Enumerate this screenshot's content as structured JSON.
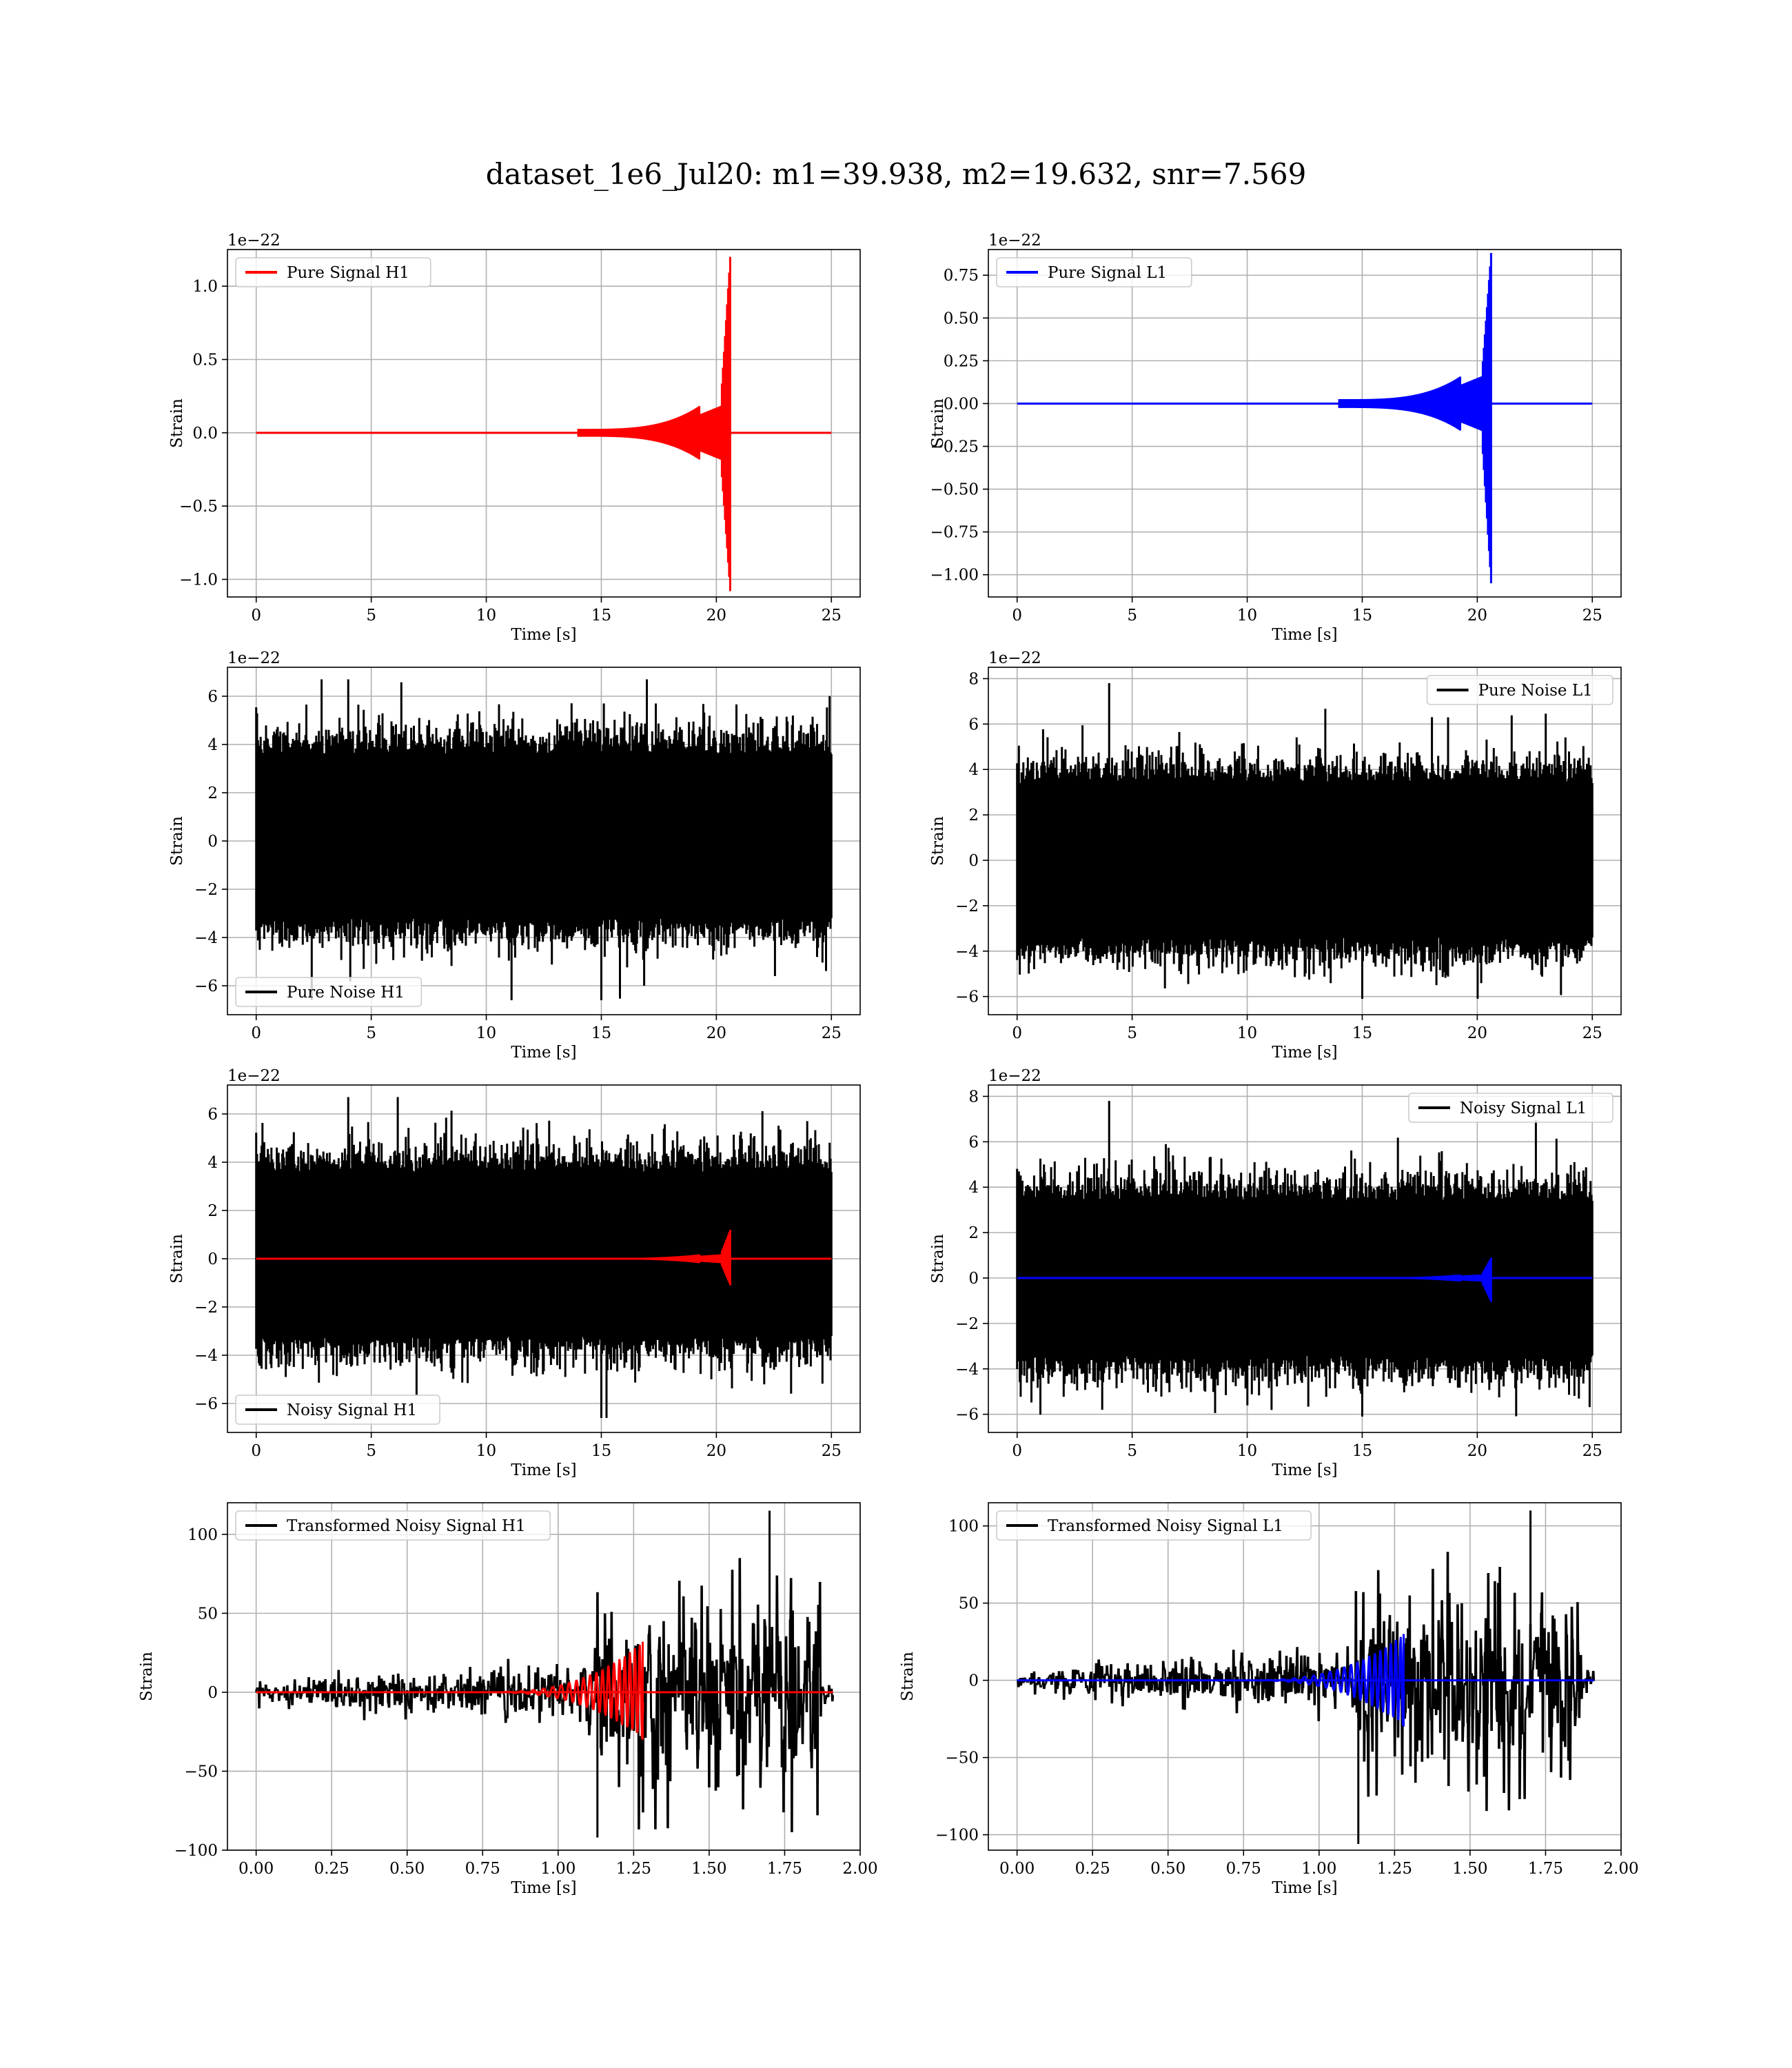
{
  "figure": {
    "title": "dataset_1e6_Jul20: m1=39.938, m2=19.632, snr=7.569"
  },
  "chart_data": [
    {
      "type": "line",
      "panel": "top-left",
      "ylabel": "Strain",
      "xlabel": "Time [s]",
      "offset_label": "1e−22",
      "xlim": [
        -1.25,
        26.25
      ],
      "ylim": [
        -1.12,
        1.25
      ],
      "xticks": [
        0,
        5,
        10,
        15,
        20,
        25
      ],
      "xtick_labels": [
        "0",
        "5",
        "10",
        "15",
        "20",
        "25"
      ],
      "yticks": [
        -1.0,
        -0.5,
        0.0,
        0.5,
        1.0
      ],
      "ytick_labels": [
        "−1.0",
        "−0.5",
        "0.0",
        "0.5",
        "1.0"
      ],
      "grid": true,
      "legend_position": "upper-left",
      "series": [
        {
          "name": "Pure Signal H1",
          "color": "#ff0000",
          "kind": "chirp",
          "t_start": 0,
          "t_end": 25,
          "t_merge": 20.6,
          "peak_pos": 1.2,
          "peak_neg": -1.08,
          "amp": 1.0
        }
      ]
    },
    {
      "type": "line",
      "panel": "top-right",
      "ylabel": "Strain",
      "xlabel": "Time [s]",
      "offset_label": "1e−22",
      "xlim": [
        -1.25,
        26.25
      ],
      "ylim": [
        -1.13,
        0.9
      ],
      "xticks": [
        0,
        5,
        10,
        15,
        20,
        25
      ],
      "xtick_labels": [
        "0",
        "5",
        "10",
        "15",
        "20",
        "25"
      ],
      "yticks": [
        -1.0,
        -0.75,
        -0.5,
        -0.25,
        0.0,
        0.25,
        0.5,
        0.75
      ],
      "ytick_labels": [
        "−1.00",
        "−0.75",
        "−0.50",
        "−0.25",
        "0.00",
        "0.25",
        "0.50",
        "0.75"
      ],
      "grid": true,
      "legend_position": "upper-left",
      "series": [
        {
          "name": "Pure Signal L1",
          "color": "#0000ff",
          "kind": "chirp",
          "t_start": 0,
          "t_end": 25,
          "t_merge": 20.6,
          "peak_pos": 0.88,
          "peak_neg": -1.05,
          "amp": 0.85
        }
      ]
    },
    {
      "type": "line",
      "panel": "middle-left",
      "ylabel": "Strain",
      "xlabel": "Time [s]",
      "offset_label": "1e−22",
      "xlim": [
        -1.25,
        26.25
      ],
      "ylim": [
        -7.2,
        7.2
      ],
      "xticks": [
        0,
        5,
        10,
        15,
        20,
        25
      ],
      "xtick_labels": [
        "0",
        "5",
        "10",
        "15",
        "20",
        "25"
      ],
      "yticks": [
        -6,
        -4,
        -2,
        0,
        2,
        4,
        6
      ],
      "ytick_labels": [
        "−6",
        "−4",
        "−2",
        "0",
        "2",
        "4",
        "6"
      ],
      "grid": true,
      "legend_position": "lower-left",
      "series": [
        {
          "name": "Pure Noise H1",
          "color": "#000000",
          "kind": "noise",
          "t_start": 0,
          "t_end": 25,
          "center": 0.2,
          "band": 3.4,
          "spike_max": 6.7,
          "spike_min": -6.6
        }
      ]
    },
    {
      "type": "line",
      "panel": "middle-right",
      "ylabel": "Strain",
      "xlabel": "Time [s]",
      "offset_label": "1e−22",
      "xlim": [
        -1.25,
        26.25
      ],
      "ylim": [
        -6.8,
        8.5
      ],
      "xticks": [
        0,
        5,
        10,
        15,
        20,
        25
      ],
      "xtick_labels": [
        "0",
        "5",
        "10",
        "15",
        "20",
        "25"
      ],
      "yticks": [
        -6,
        -4,
        -2,
        0,
        2,
        4,
        6,
        8
      ],
      "ytick_labels": [
        "−6",
        "−4",
        "−2",
        "0",
        "2",
        "4",
        "6",
        "8"
      ],
      "grid": true,
      "legend_position": "upper-right",
      "series": [
        {
          "name": "Pure Noise L1",
          "color": "#000000",
          "kind": "noise",
          "t_start": 0,
          "t_end": 25,
          "center": 0.0,
          "band": 3.4,
          "spike_max": 7.8,
          "spike_min": -6.1
        }
      ]
    },
    {
      "type": "line",
      "panel": "third-left",
      "ylabel": "Strain",
      "xlabel": "Time [s]",
      "offset_label": "1e−22",
      "xlim": [
        -1.25,
        26.25
      ],
      "ylim": [
        -7.2,
        7.2
      ],
      "xticks": [
        0,
        5,
        10,
        15,
        20,
        25
      ],
      "xtick_labels": [
        "0",
        "5",
        "10",
        "15",
        "20",
        "25"
      ],
      "yticks": [
        -6,
        -4,
        -2,
        0,
        2,
        4,
        6
      ],
      "ytick_labels": [
        "−6",
        "−4",
        "−2",
        "0",
        "2",
        "4",
        "6"
      ],
      "grid": true,
      "legend_position": "lower-left",
      "series": [
        {
          "name": "Noisy Signal H1",
          "color": "#000000",
          "kind": "noise",
          "t_start": 0,
          "t_end": 25,
          "center": 0.2,
          "band": 3.4,
          "spike_max": 6.7,
          "spike_min": -6.6
        },
        {
          "color": "#ff0000",
          "kind": "chirp",
          "t_start": 0,
          "t_end": 25,
          "t_merge": 20.6,
          "peak_pos": 1.2,
          "peak_neg": -1.1,
          "amp": 1.0
        }
      ]
    },
    {
      "type": "line",
      "panel": "third-right",
      "ylabel": "Strain",
      "xlabel": "Time [s]",
      "offset_label": "1e−22",
      "xlim": [
        -1.25,
        26.25
      ],
      "ylim": [
        -6.8,
        8.5
      ],
      "xticks": [
        0,
        5,
        10,
        15,
        20,
        25
      ],
      "xtick_labels": [
        "0",
        "5",
        "10",
        "15",
        "20",
        "25"
      ],
      "yticks": [
        -6,
        -4,
        -2,
        0,
        2,
        4,
        6,
        8
      ],
      "ytick_labels": [
        "−6",
        "−4",
        "−2",
        "0",
        "2",
        "4",
        "6",
        "8"
      ],
      "grid": true,
      "legend_position": "upper-right",
      "series": [
        {
          "name": "Noisy Signal L1",
          "color": "#000000",
          "kind": "noise",
          "t_start": 0,
          "t_end": 25,
          "center": 0.0,
          "band": 3.4,
          "spike_max": 7.8,
          "spike_min": -6.1
        },
        {
          "color": "#0000ff",
          "kind": "chirp",
          "t_start": 0,
          "t_end": 25,
          "t_merge": 20.6,
          "peak_pos": 0.9,
          "peak_neg": -1.05,
          "amp": 0.85
        }
      ]
    },
    {
      "type": "line",
      "panel": "bottom-left",
      "ylabel": "Strain",
      "xlabel": "Time [s]",
      "xlim": [
        -0.095,
        2.0
      ],
      "ylim": [
        -100,
        120
      ],
      "xticks": [
        0.0,
        0.25,
        0.5,
        0.75,
        1.0,
        1.25,
        1.5,
        1.75,
        2.0
      ],
      "xtick_labels": [
        "0.00",
        "0.25",
        "0.50",
        "0.75",
        "1.00",
        "1.25",
        "1.50",
        "1.75",
        "2.00"
      ],
      "yticks": [
        -100,
        -50,
        0,
        50,
        100
      ],
      "ytick_labels": [
        "−100",
        "−50",
        "0",
        "50",
        "100"
      ],
      "grid": true,
      "legend_position": "upper-left",
      "series": [
        {
          "name": "Transformed Noisy Signal H1",
          "color": "#000000",
          "kind": "tnoise",
          "t_start": 0,
          "t_end": 1.91,
          "t_break": 1.12,
          "t_quiet": 1.87,
          "low_band": 8,
          "high_band": 55,
          "spike_max": 115,
          "spike_min": -92
        },
        {
          "color": "#ff0000",
          "kind": "tchirp",
          "t_start": 0,
          "t_end": 1.91,
          "t_merge": 1.28,
          "peak_pos": 32,
          "peak_neg": -30
        }
      ]
    },
    {
      "type": "line",
      "panel": "bottom-right",
      "ylabel": "Strain",
      "xlabel": "Time [s]",
      "xlim": [
        -0.095,
        2.0
      ],
      "ylim": [
        -110,
        115
      ],
      "xticks": [
        0.0,
        0.25,
        0.5,
        0.75,
        1.0,
        1.25,
        1.5,
        1.75,
        2.0
      ],
      "xtick_labels": [
        "0.00",
        "0.25",
        "0.50",
        "0.75",
        "1.00",
        "1.25",
        "1.50",
        "1.75",
        "2.00"
      ],
      "yticks": [
        -100,
        -50,
        0,
        50,
        100
      ],
      "ytick_labels": [
        "−100",
        "−50",
        "0",
        "50",
        "100"
      ],
      "grid": true,
      "legend_position": "upper-left",
      "series": [
        {
          "name": "Transformed Noisy Signal L1",
          "color": "#000000",
          "kind": "tnoise",
          "t_start": 0,
          "t_end": 1.91,
          "t_break": 1.12,
          "t_quiet": 1.87,
          "low_band": 8,
          "high_band": 55,
          "spike_max": 110,
          "spike_min": -106
        },
        {
          "color": "#0000ff",
          "kind": "tchirp",
          "t_start": 0,
          "t_end": 1.91,
          "t_merge": 1.28,
          "peak_pos": 30,
          "peak_neg": -30
        }
      ]
    }
  ]
}
